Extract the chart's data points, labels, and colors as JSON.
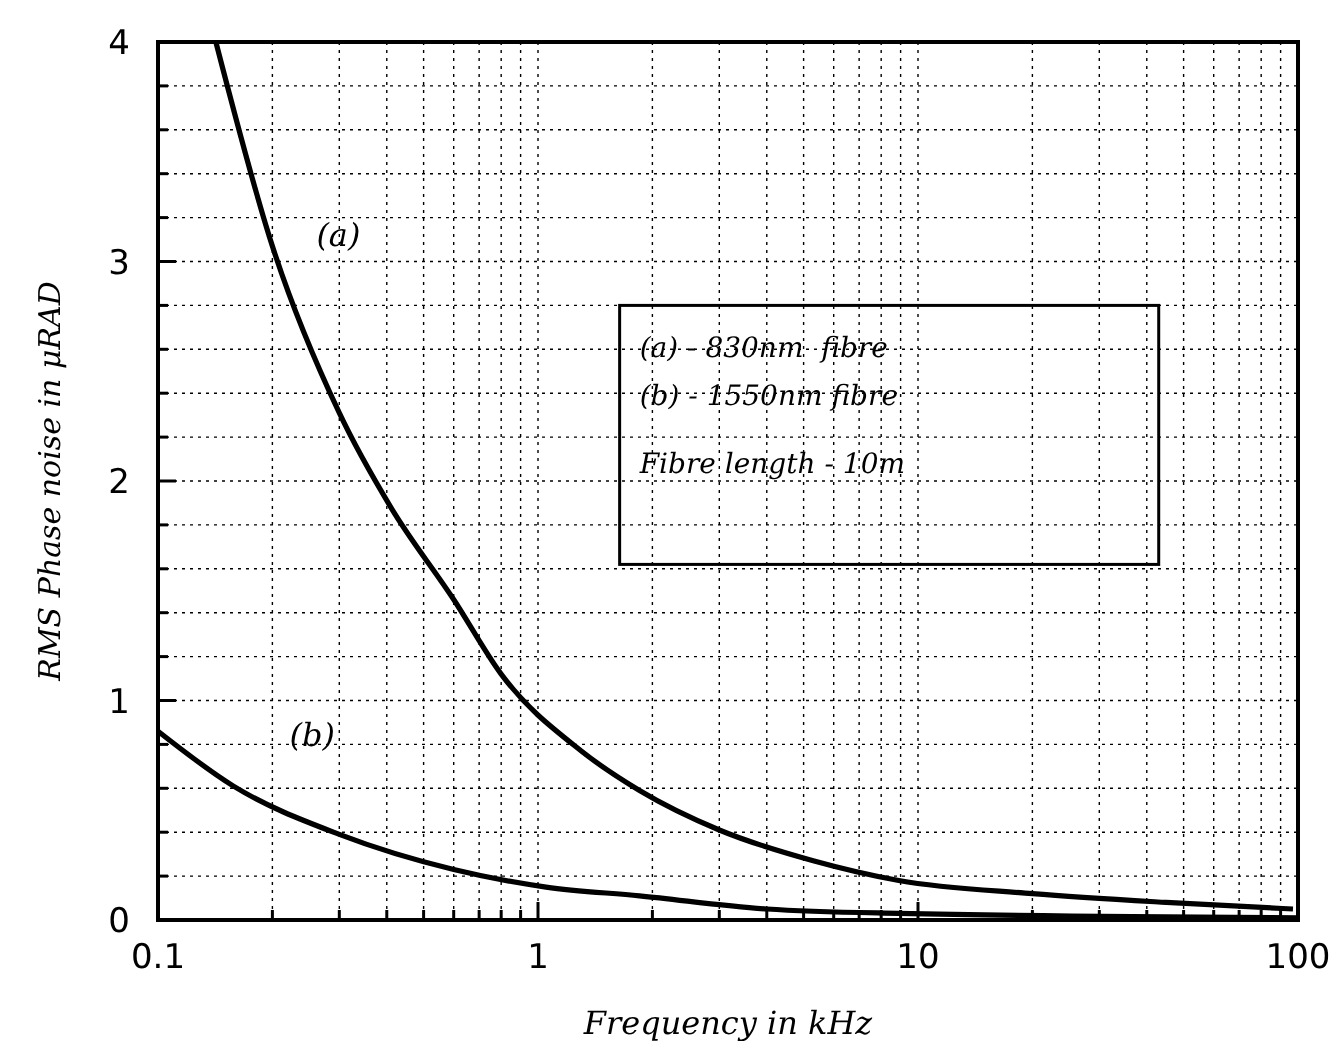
{
  "chart_data": {
    "type": "line",
    "xlabel": "Frequency in kHz",
    "ylabel": "RMS Phase noise in μRAD",
    "log": "x",
    "grid": true,
    "marker": "none",
    "line_style": "solid",
    "xlim": [
      0.1,
      100
    ],
    "ylim": [
      0,
      4
    ],
    "xticks": [
      0.1,
      {
        "value": 0.2,
        "label": null
      },
      {
        "value": 0.3,
        "label": null
      },
      {
        "value": 0.4,
        "label": null
      },
      {
        "value": 0.5,
        "label": null
      },
      {
        "value": 0.6,
        "label": null
      },
      {
        "value": 0.7,
        "label": null
      },
      {
        "value": 0.8,
        "label": null
      },
      {
        "value": 0.9,
        "label": null
      },
      1,
      {
        "value": 2,
        "label": null
      },
      {
        "value": 3,
        "label": null
      },
      {
        "value": 4,
        "label": null
      },
      {
        "value": 5,
        "label": null
      },
      {
        "value": 6,
        "label": null
      },
      {
        "value": 7,
        "label": null
      },
      {
        "value": 8,
        "label": null
      },
      {
        "value": 9,
        "label": null
      },
      10,
      {
        "value": 20,
        "label": null
      },
      {
        "value": 30,
        "label": null
      },
      {
        "value": 40,
        "label": null
      },
      {
        "value": 50,
        "label": null
      },
      {
        "value": 60,
        "label": null
      },
      {
        "value": 70,
        "label": null
      },
      {
        "value": 80,
        "label": null
      },
      {
        "value": 90,
        "label": null
      },
      100
    ],
    "yticks": [
      0,
      {
        "value": 0.2,
        "label": null
      },
      {
        "value": 0.4,
        "label": null
      },
      {
        "value": 0.6,
        "label": null
      },
      {
        "value": 0.8,
        "label": null
      },
      1,
      {
        "value": 1.2,
        "label": null
      },
      {
        "value": 1.4,
        "label": null
      },
      {
        "value": 1.6,
        "label": null
      },
      {
        "value": 1.8,
        "label": null
      },
      2,
      {
        "value": 2.2,
        "label": null
      },
      {
        "value": 2.4,
        "label": null
      },
      {
        "value": 2.6,
        "label": null
      },
      {
        "value": 2.8,
        "label": null
      },
      3,
      {
        "value": 3.2,
        "label": null
      },
      {
        "value": 3.4,
        "label": null
      },
      {
        "value": 3.6,
        "label": null
      },
      {
        "value": 3.8,
        "label": null
      },
      4
    ],
    "series": [
      {
        "name": "(a)",
        "color": "#000000",
        "x": [
          0.142,
          0.2,
          0.3,
          0.41,
          0.6,
          0.8,
          1.3,
          1.85,
          3,
          5.3,
          8.9,
          20,
          45,
          97
        ],
        "values": [
          4,
          3.07,
          2.31,
          1.88,
          1.46,
          1.12,
          0.77,
          0.59,
          0.41,
          0.27,
          0.18,
          0.12,
          0.08,
          0.05
        ]
      },
      {
        "name": "(b)",
        "color": "#000000",
        "x": [
          0.1,
          0.158,
          0.3,
          0.6,
          1.05,
          1.85,
          4,
          8.9,
          100
        ],
        "values": [
          0.86,
          0.61,
          0.39,
          0.23,
          0.15,
          0.11,
          0.05,
          0.03,
          0.01
        ]
      }
    ],
    "annotations": [
      "(a) - 830nm  fibre",
      "(b) - 1550nm fibre",
      "Fibre length - 10m"
    ]
  }
}
